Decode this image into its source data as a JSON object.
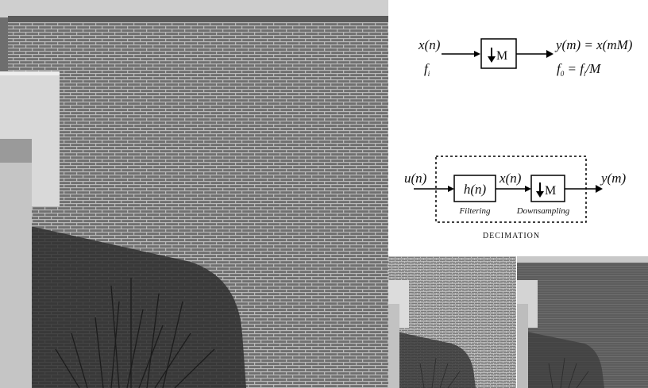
{
  "downsampler": {
    "input_label": "x(n)",
    "input_rate": "f",
    "input_rate_sub": "i",
    "block_label": "M",
    "output_label": "y(m) = x(mM)",
    "output_rate_prefix": "f",
    "output_rate_sub_0": "0",
    "output_rate_mid": " = f",
    "output_rate_sub_i": "i",
    "output_rate_suffix": "/M"
  },
  "decimator": {
    "input_label": "u(n)",
    "filter_block": "h(n)",
    "intermediate_label": "x(n)",
    "down_block": "M",
    "output_label": "y(m)",
    "filter_caption": "Filtering",
    "down_caption": "Downsampling",
    "title": "DECIMATION"
  },
  "icons": {
    "down_arrow": "down-arrow-icon"
  },
  "colors": {
    "brick": "#6a6a6a",
    "mortar": "#bdbdbd",
    "stroke": "#000000"
  }
}
